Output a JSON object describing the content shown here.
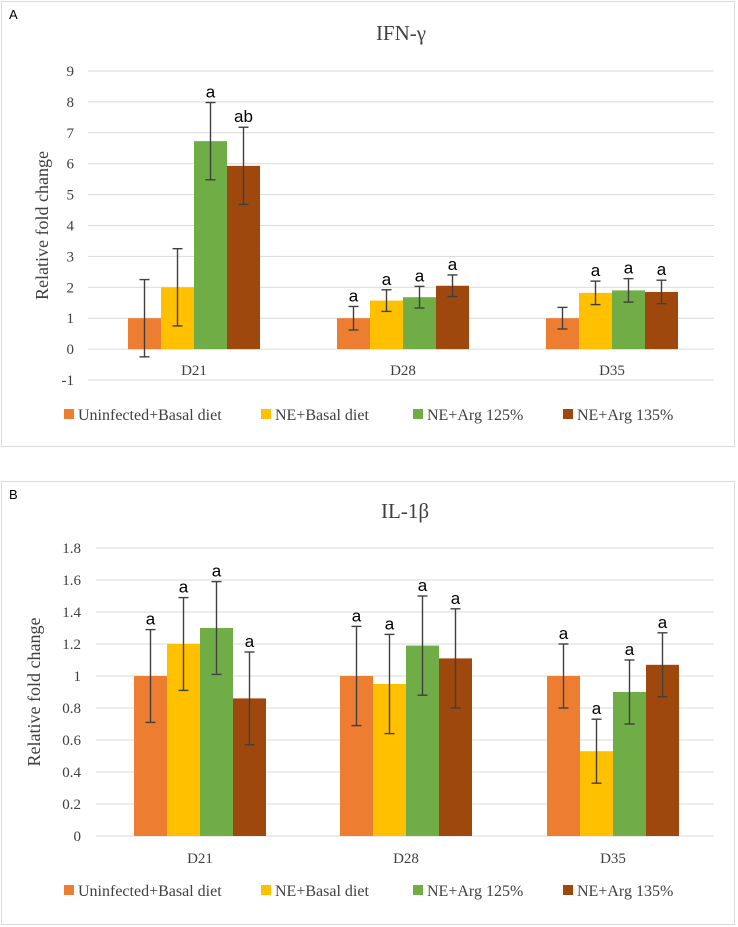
{
  "chart_data": [
    {
      "panel": "A",
      "type": "bar",
      "title": "IFN-γ",
      "xlabel": "",
      "ylabel": "Relative fold change",
      "ylim": [
        -1,
        9
      ],
      "yticks": [
        -1,
        0,
        1,
        2,
        3,
        4,
        5,
        6,
        7,
        8,
        9
      ],
      "ytick_labels": [
        "-1",
        "0",
        "1",
        "2",
        "3",
        "4",
        "5",
        "6",
        "7",
        "8",
        "9"
      ],
      "grid": true,
      "legend_position": "bottom",
      "categories": [
        "D21",
        "D28",
        "D35"
      ],
      "series": [
        {
          "name": "Uninfected+Basal diet",
          "color": "#ED7D31",
          "values": [
            1.0,
            1.0,
            1.0
          ],
          "errors": [
            1.25,
            0.38,
            0.35
          ],
          "labels": [
            "",
            "a",
            ""
          ]
        },
        {
          "name": "NE+Basal diet",
          "color": "#FFC000",
          "values": [
            2.0,
            1.57,
            1.82
          ],
          "errors": [
            1.25,
            0.35,
            0.38
          ],
          "labels": [
            "",
            "a",
            "a"
          ]
        },
        {
          "name": "NE+Arg 125%",
          "color": "#70AD47",
          "values": [
            6.73,
            1.68,
            1.9
          ],
          "errors": [
            1.25,
            0.35,
            0.38
          ],
          "labels": [
            "a",
            "a",
            "a"
          ]
        },
        {
          "name": "NE+Arg 135%",
          "color": "#9E480E",
          "values": [
            5.93,
            2.05,
            1.85
          ],
          "errors": [
            1.25,
            0.35,
            0.38
          ],
          "labels": [
            "ab",
            "a",
            "a"
          ]
        }
      ]
    },
    {
      "panel": "B",
      "type": "bar",
      "title": "IL-1β",
      "xlabel": "",
      "ylabel": "Relative fold change",
      "ylim": [
        0,
        1.8
      ],
      "yticks": [
        0,
        0.2,
        0.4,
        0.6,
        0.8,
        1.0,
        1.2,
        1.4,
        1.6,
        1.8
      ],
      "ytick_labels": [
        "0",
        "0.2",
        "0.4",
        "0.6",
        "0.8",
        "1",
        "1.2",
        "1.4",
        "1.6",
        "1.8"
      ],
      "grid": true,
      "legend_position": "bottom",
      "categories": [
        "D21",
        "D28",
        "D35"
      ],
      "series": [
        {
          "name": "Uninfected+Basal diet",
          "color": "#ED7D31",
          "values": [
            1.0,
            1.0,
            1.0
          ],
          "errors": [
            0.29,
            0.31,
            0.2
          ],
          "labels": [
            "a",
            "a",
            "a"
          ]
        },
        {
          "name": "NE+Basal diet",
          "color": "#FFC000",
          "values": [
            1.2,
            0.95,
            0.53
          ],
          "errors": [
            0.29,
            0.31,
            0.2
          ],
          "labels": [
            "a",
            "a",
            "a"
          ]
        },
        {
          "name": "NE+Arg 125%",
          "color": "#70AD47",
          "values": [
            1.3,
            1.19,
            0.9
          ],
          "errors": [
            0.29,
            0.31,
            0.2
          ],
          "labels": [
            "a",
            "a",
            "a"
          ]
        },
        {
          "name": "NE+Arg 135%",
          "color": "#9E480E",
          "values": [
            0.86,
            1.11,
            1.07
          ],
          "errors": [
            0.29,
            0.31,
            0.2
          ],
          "labels": [
            "a",
            "a",
            "a"
          ]
        }
      ]
    }
  ]
}
